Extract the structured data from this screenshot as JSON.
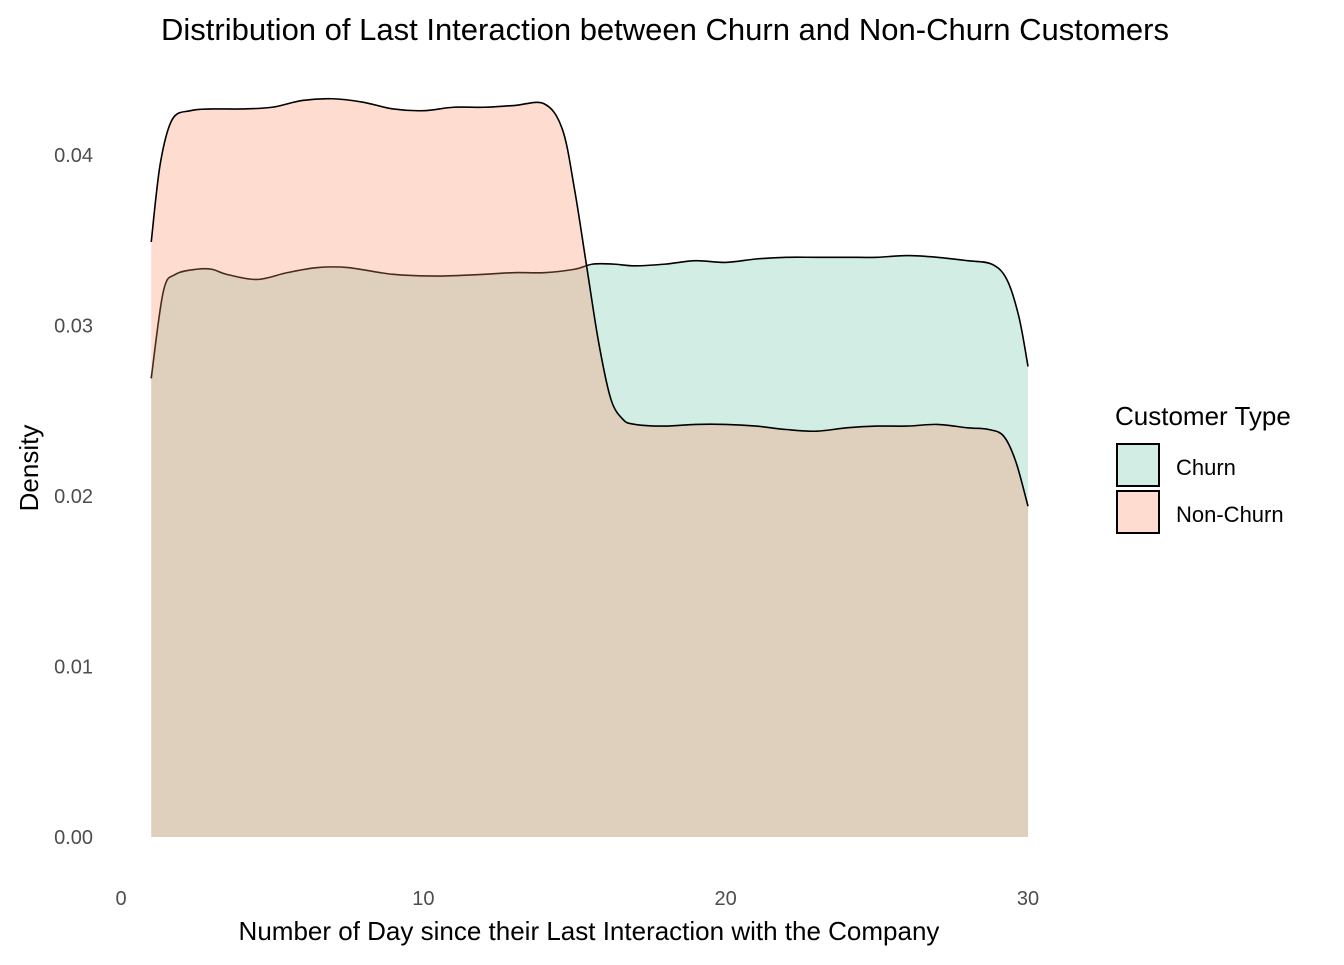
{
  "chart_data": {
    "type": "area",
    "title": "Distribution of Last Interaction between Churn and Non-Churn Customers",
    "xlabel": "Number of Day since their Last Interaction with the Company",
    "ylabel": "Density",
    "xlim": [
      0,
      30
    ],
    "ylim": [
      0,
      0.04
    ],
    "x_ticks": [
      "0",
      "10",
      "20",
      "30"
    ],
    "y_ticks": [
      "0.00",
      "0.01",
      "0.02",
      "0.03",
      "0.04"
    ],
    "grid": false,
    "legend": {
      "title": "Customer Type",
      "placement": "right",
      "entries": [
        "Churn",
        "Non-Churn"
      ]
    },
    "series": [
      {
        "name": "Churn",
        "color": "#66C2A5",
        "x": [
          1,
          1.4,
          1.8,
          2.5,
          3,
          3.5,
          4.5,
          5.5,
          6.5,
          7.5,
          9,
          10.5,
          12,
          13,
          14,
          15,
          15.6,
          16.3,
          17,
          18,
          19,
          20,
          21,
          22,
          23,
          24,
          25,
          26,
          27,
          28,
          28.8,
          29.3,
          29.7,
          30
        ],
        "y": [
          0.0269,
          0.032,
          0.033,
          0.0333,
          0.0333,
          0.033,
          0.0327,
          0.0331,
          0.0334,
          0.0334,
          0.033,
          0.0329,
          0.033,
          0.0331,
          0.0331,
          0.0333,
          0.0336,
          0.0336,
          0.0335,
          0.0336,
          0.0338,
          0.0337,
          0.0339,
          0.034,
          0.034,
          0.034,
          0.034,
          0.0341,
          0.034,
          0.0338,
          0.0336,
          0.0327,
          0.0305,
          0.0276
        ]
      },
      {
        "name": "Non-Churn",
        "color": "#FC8D62",
        "x": [
          1,
          1.3,
          1.7,
          2.3,
          3,
          4,
          5,
          6,
          7,
          8,
          9,
          10,
          11,
          12,
          13,
          14,
          14.6,
          15,
          15.4,
          15.8,
          16.2,
          16.6,
          17,
          18,
          19,
          20,
          21,
          22,
          23,
          24,
          25,
          26,
          27,
          28,
          28.7,
          29.2,
          29.6,
          30
        ],
        "y": [
          0.0349,
          0.0395,
          0.0421,
          0.0426,
          0.0427,
          0.0427,
          0.0428,
          0.0432,
          0.0433,
          0.0431,
          0.0427,
          0.0426,
          0.0428,
          0.0428,
          0.0429,
          0.043,
          0.0415,
          0.038,
          0.0335,
          0.029,
          0.0257,
          0.0245,
          0.0242,
          0.0241,
          0.0242,
          0.0242,
          0.0241,
          0.0239,
          0.0238,
          0.024,
          0.0241,
          0.0241,
          0.0242,
          0.024,
          0.0239,
          0.0235,
          0.022,
          0.0194
        ]
      }
    ]
  }
}
